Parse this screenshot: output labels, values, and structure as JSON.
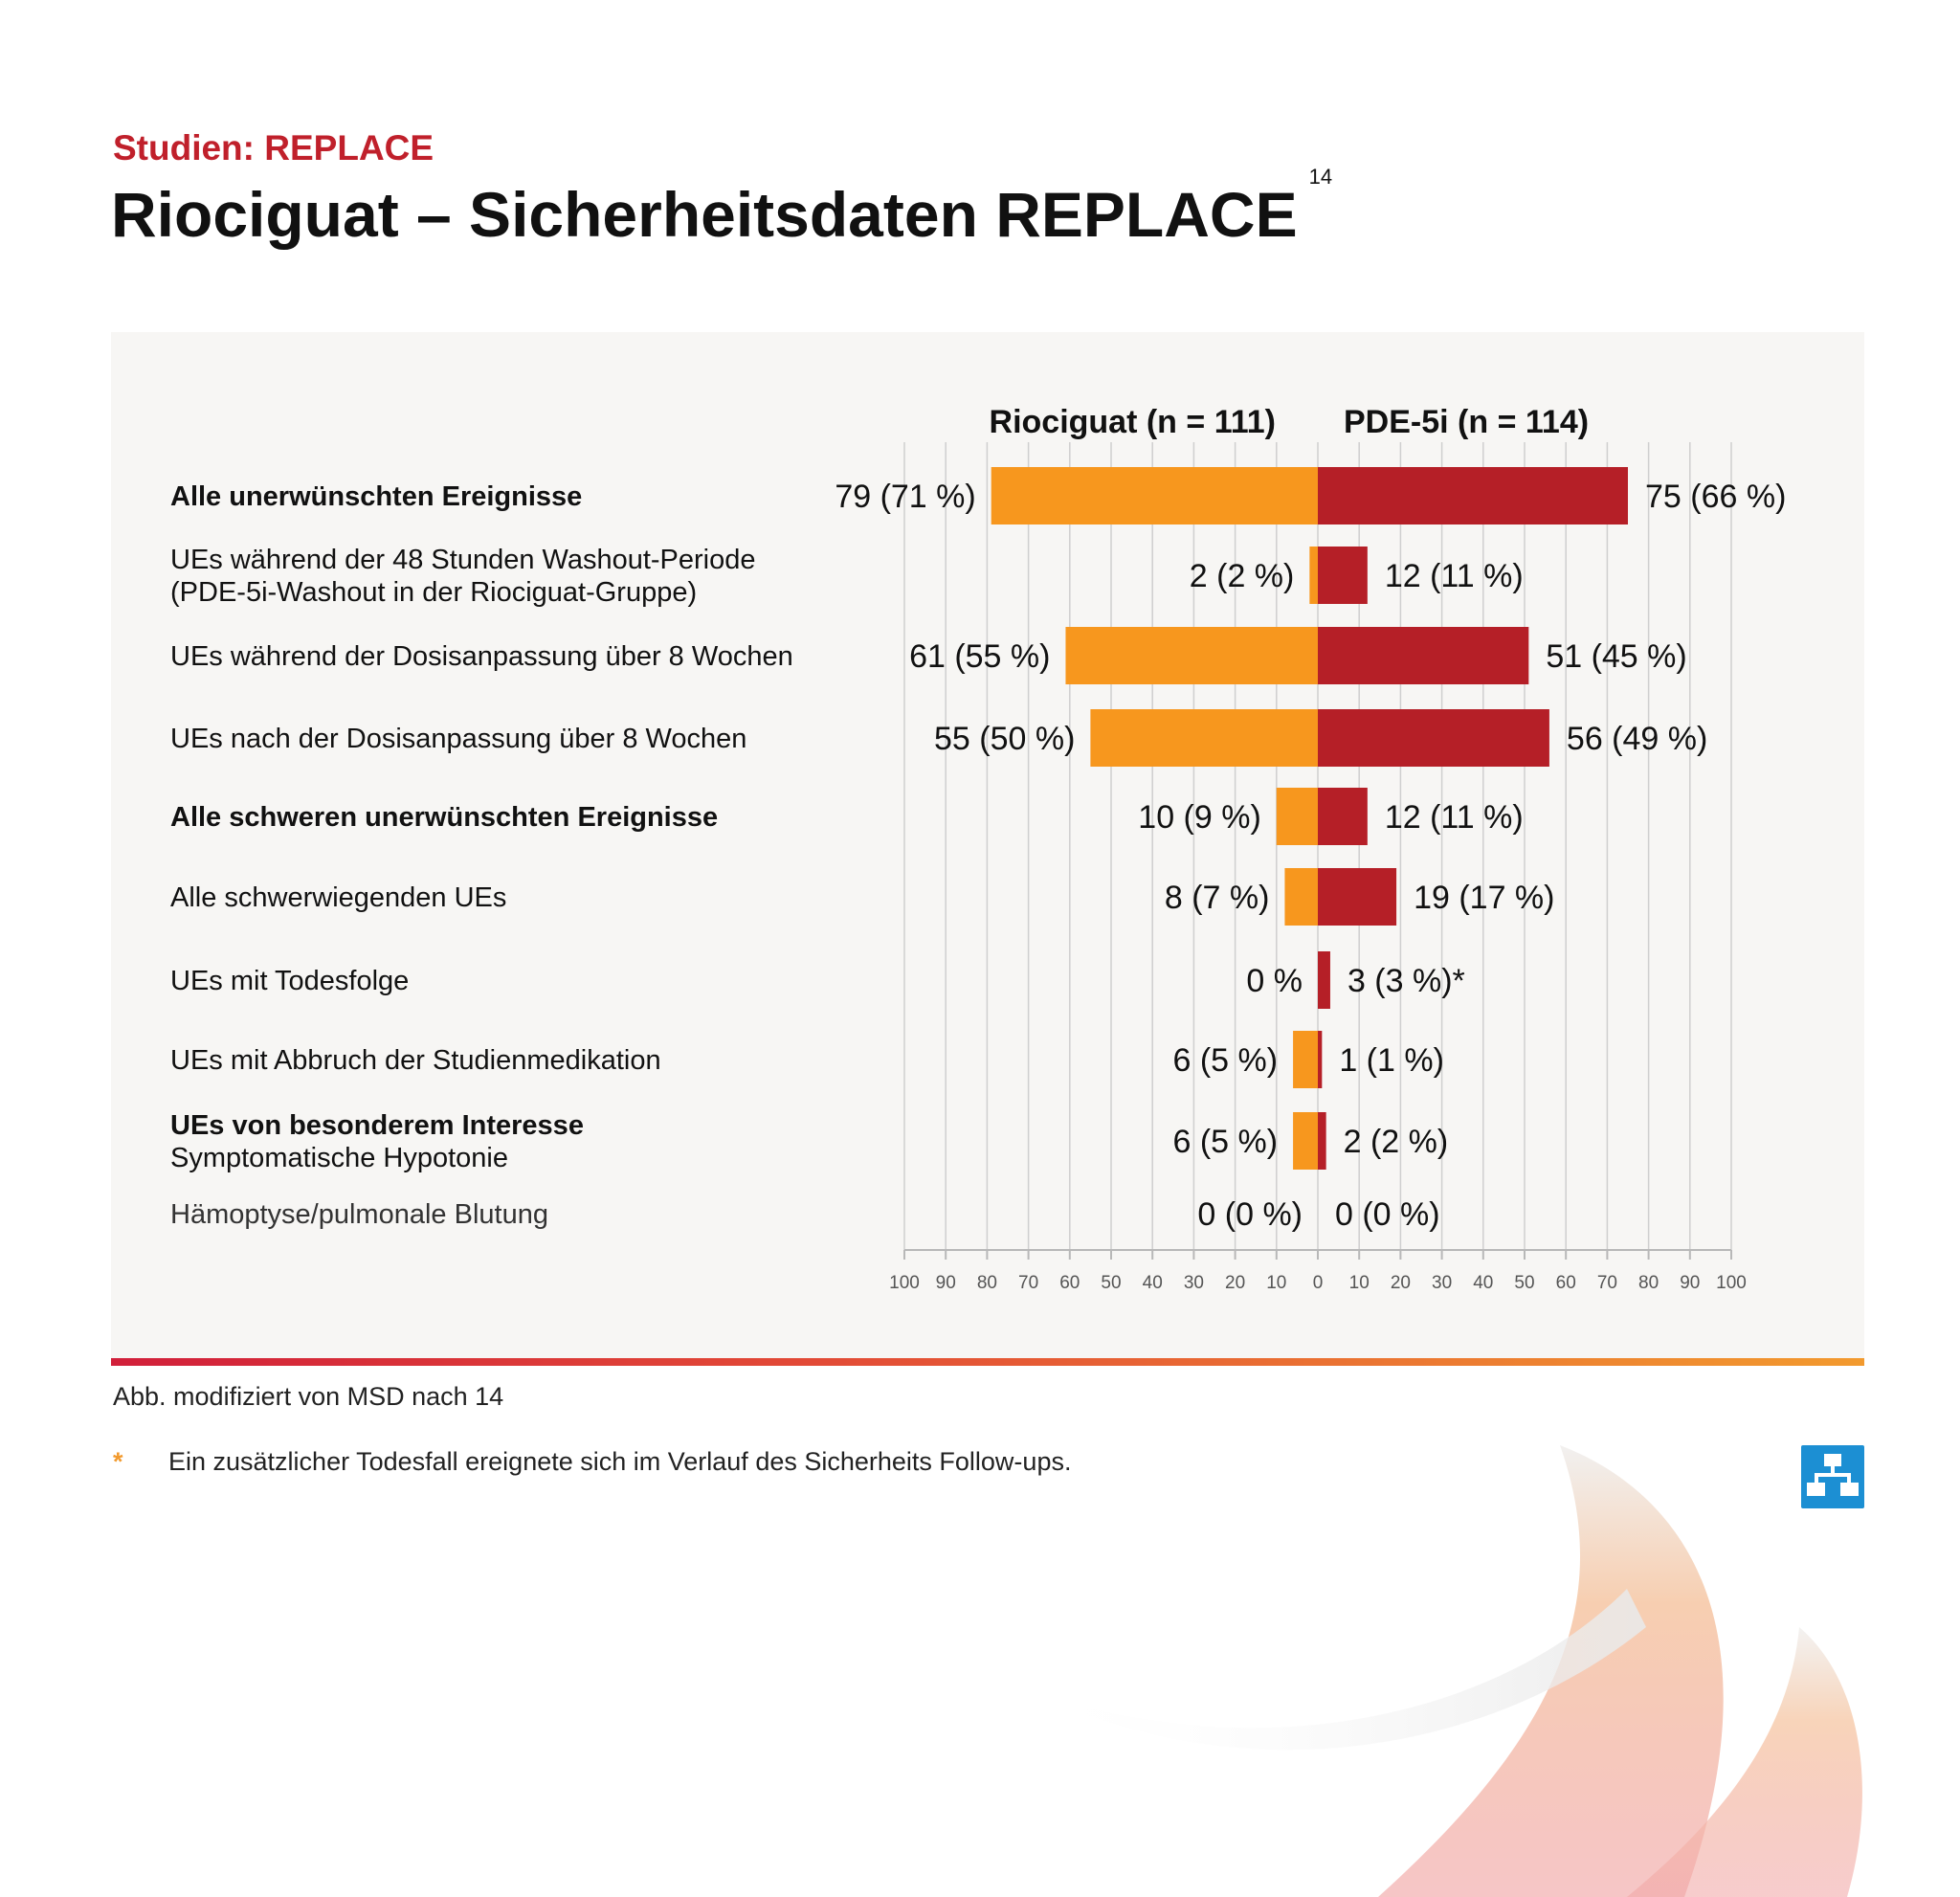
{
  "header": {
    "subtitle": "Studien: REPLACE",
    "title": "Riociguat – Sicherheitsdaten REPLACE",
    "title_ref": "14"
  },
  "chart_data": {
    "type": "bar",
    "orientation": "horizontal-diverging",
    "series": [
      {
        "name": "Riociguat (n = 111)",
        "color": "#f7971e",
        "values": [
          79,
          2,
          61,
          55,
          10,
          8,
          0,
          6,
          6,
          0
        ],
        "labels": [
          "79 (71 %)",
          "2 (2 %)",
          "61 (55 %)",
          "55 (50 %)",
          "10 (9 %)",
          "8 (7 %)",
          "0 %",
          "6 (5 %)",
          "6 (5 %)",
          "0 (0 %)"
        ]
      },
      {
        "name": "PDE-5i (n = 114)",
        "color": "#b51f27",
        "values": [
          75,
          12,
          51,
          56,
          12,
          19,
          3,
          1,
          2,
          0
        ],
        "labels": [
          "75 (66 %)",
          "12 (11 %)",
          "51 (45 %)",
          "56 (49 %)",
          "12 (11 %)",
          "19 (17 %)",
          "3 (3 %)*",
          "1 (1 %)",
          "2 (2 %)",
          "0 (0 %)"
        ]
      }
    ],
    "categories": [
      {
        "lines": [
          "Alle unerwünschten Ereignisse"
        ],
        "style": "bold"
      },
      {
        "lines": [
          "UEs während der 48 Stunden Washout-Periode",
          "(PDE-5i-Washout in der Riociguat-Gruppe)"
        ],
        "style": "normal"
      },
      {
        "lines": [
          "UEs während der Dosisanpassung über 8 Wochen"
        ],
        "style": "normal"
      },
      {
        "lines": [
          "UEs nach der Dosisanpassung über 8 Wochen"
        ],
        "style": "normal"
      },
      {
        "lines": [
          "Alle schweren unerwünschten Ereignisse"
        ],
        "style": "bold"
      },
      {
        "lines": [
          "Alle schwerwiegenden UEs"
        ],
        "style": "normal"
      },
      {
        "lines": [
          "UEs mit Todesfolge"
        ],
        "style": "normal"
      },
      {
        "lines": [
          "UEs mit Abbruch der Studienmedikation"
        ],
        "style": "normal"
      },
      {
        "lines": [
          "UEs von besonderem Interesse",
          "Symptomatische Hypotonie"
        ],
        "style": "bold-first"
      },
      {
        "lines": [
          "Hämoptyse/pulmonale Blutung"
        ],
        "style": "light"
      }
    ],
    "xlim": [
      -100,
      100
    ],
    "xticks": [
      "100",
      "90",
      "80",
      "70",
      "60",
      "50",
      "40",
      "30",
      "20",
      "10",
      "0",
      "10",
      "20",
      "30",
      "40",
      "50",
      "60",
      "70",
      "80",
      "90",
      "100"
    ],
    "grid": true,
    "legend": "top"
  },
  "footer": {
    "source": "Abb. modifiziert von MSD nach 14",
    "footnote_marker": "*",
    "footnote": "Ein zusätzlicher Todesfall ereignete sich im Verlauf des Sicherheits Follow-ups."
  }
}
